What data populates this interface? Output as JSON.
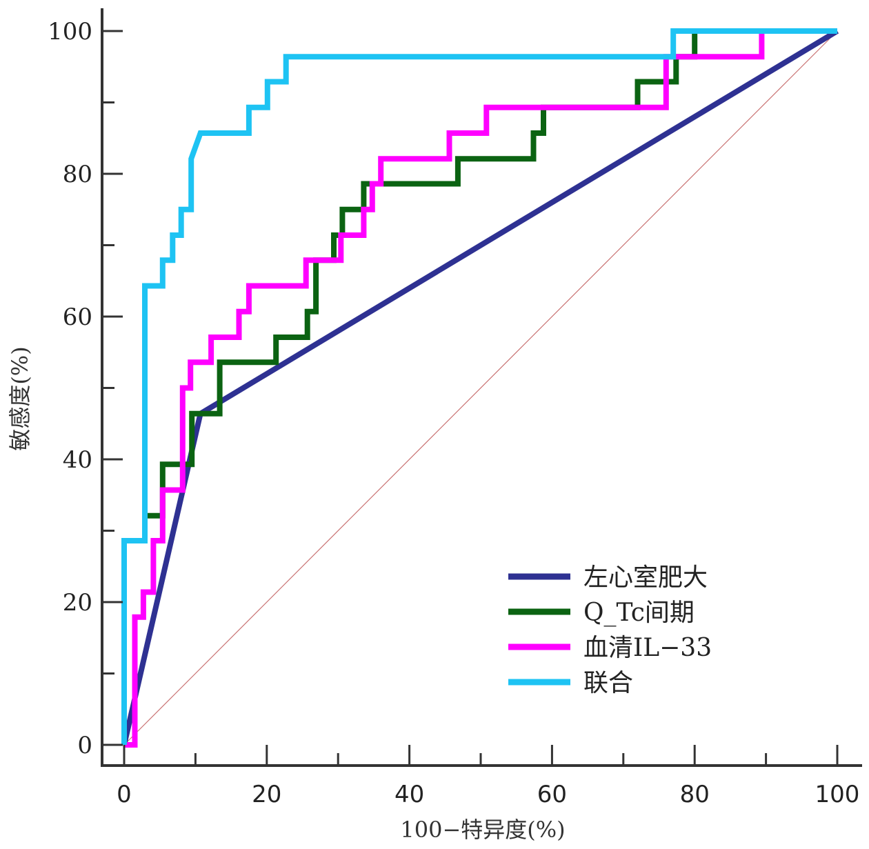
{
  "chart_data": {
    "type": "line",
    "title": "",
    "xlabel": "100−特异度(%)",
    "ylabel": "敏感度(%)",
    "xlim": [
      0,
      100
    ],
    "ylim": [
      0,
      100
    ],
    "x_ticks": [
      "0",
      "20",
      "40",
      "60",
      "80",
      "100"
    ],
    "y_ticks": [
      "0",
      "20",
      "40",
      "60",
      "80",
      "100"
    ],
    "grid": false,
    "legend_position": "bottom-right",
    "reference_line": {
      "points": [
        [
          0,
          0
        ],
        [
          100,
          100
        ]
      ],
      "color": "#c87070"
    },
    "series": [
      {
        "name": "左心室肥大",
        "color": "#2e3192",
        "step": false,
        "points": [
          [
            0,
            0
          ],
          [
            10.7,
            46.4
          ],
          [
            100,
            100
          ]
        ]
      },
      {
        "name": "Q_Tc间期",
        "color": "#0b6312",
        "step": true,
        "points": [
          [
            0,
            0
          ],
          [
            0,
            28.6
          ],
          [
            2.9,
            28.6
          ],
          [
            2.9,
            32.1
          ],
          [
            5.4,
            32.1
          ],
          [
            5.4,
            39.3
          ],
          [
            9.5,
            39.3
          ],
          [
            9.5,
            46.4
          ],
          [
            13.4,
            46.4
          ],
          [
            13.4,
            53.6
          ],
          [
            21.3,
            53.6
          ],
          [
            21.3,
            57.1
          ],
          [
            25.7,
            57.1
          ],
          [
            25.7,
            60.7
          ],
          [
            26.9,
            60.7
          ],
          [
            26.9,
            67.9
          ],
          [
            29.4,
            67.9
          ],
          [
            29.4,
            71.4
          ],
          [
            30.6,
            71.4
          ],
          [
            30.6,
            75.0
          ],
          [
            33.6,
            75.0
          ],
          [
            33.6,
            78.6
          ],
          [
            46.8,
            78.6
          ],
          [
            46.8,
            82.1
          ],
          [
            57.4,
            82.1
          ],
          [
            57.4,
            85.7
          ],
          [
            58.8,
            85.7
          ],
          [
            58.8,
            89.3
          ],
          [
            72.0,
            89.3
          ],
          [
            72.0,
            92.9
          ],
          [
            77.4,
            92.9
          ],
          [
            77.4,
            96.4
          ],
          [
            80.0,
            96.4
          ],
          [
            80.0,
            100
          ],
          [
            100,
            100
          ]
        ]
      },
      {
        "name": "血清IL−33",
        "color": "#ff00ff",
        "step": true,
        "points": [
          [
            0,
            0
          ],
          [
            1.5,
            0
          ],
          [
            1.5,
            17.9
          ],
          [
            2.7,
            17.9
          ],
          [
            2.7,
            21.4
          ],
          [
            4.1,
            21.4
          ],
          [
            4.1,
            28.6
          ],
          [
            5.4,
            28.6
          ],
          [
            5.4,
            35.7
          ],
          [
            8.2,
            35.7
          ],
          [
            8.2,
            50.0
          ],
          [
            9.3,
            50.0
          ],
          [
            9.3,
            53.6
          ],
          [
            12.2,
            53.6
          ],
          [
            12.2,
            57.1
          ],
          [
            16.1,
            57.1
          ],
          [
            16.1,
            60.7
          ],
          [
            17.5,
            60.7
          ],
          [
            17.5,
            64.3
          ],
          [
            25.5,
            64.3
          ],
          [
            25.5,
            67.9
          ],
          [
            30.4,
            67.9
          ],
          [
            30.4,
            71.4
          ],
          [
            33.6,
            71.4
          ],
          [
            33.6,
            75.0
          ],
          [
            34.8,
            75.0
          ],
          [
            34.8,
            78.6
          ],
          [
            36.0,
            78.6
          ],
          [
            36.0,
            82.1
          ],
          [
            45.6,
            82.1
          ],
          [
            45.6,
            85.7
          ],
          [
            50.8,
            85.7
          ],
          [
            50.8,
            89.3
          ],
          [
            76.0,
            89.3
          ],
          [
            76.0,
            96.4
          ],
          [
            89.4,
            96.4
          ],
          [
            89.4,
            100
          ],
          [
            100,
            100
          ]
        ]
      },
      {
        "name": "联合",
        "color": "#1ec3f3",
        "step": true,
        "points": [
          [
            0,
            0
          ],
          [
            0,
            28.6
          ],
          [
            2.9,
            28.6
          ],
          [
            2.9,
            64.3
          ],
          [
            5.4,
            64.3
          ],
          [
            5.4,
            67.9
          ],
          [
            6.8,
            67.9
          ],
          [
            6.8,
            71.4
          ],
          [
            8.0,
            71.4
          ],
          [
            8.0,
            75.0
          ],
          [
            9.4,
            75.0
          ],
          [
            9.4,
            82.1
          ],
          [
            10.7,
            85.7
          ],
          [
            17.5,
            85.7
          ],
          [
            17.5,
            89.3
          ],
          [
            20.1,
            89.3
          ],
          [
            20.1,
            92.9
          ],
          [
            22.7,
            92.9
          ],
          [
            22.7,
            96.4
          ],
          [
            77.0,
            96.4
          ],
          [
            77.0,
            100
          ],
          [
            100,
            100
          ]
        ]
      }
    ]
  }
}
